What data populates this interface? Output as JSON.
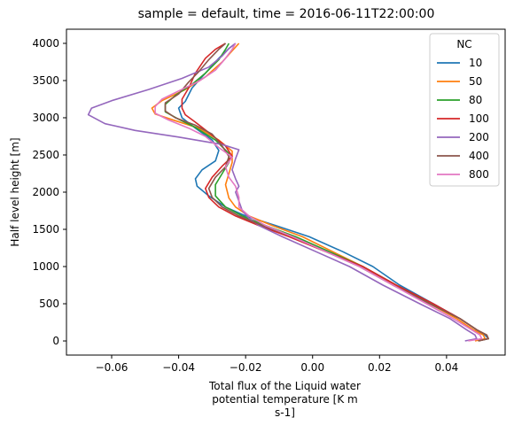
{
  "chart_data": {
    "type": "line",
    "title": "sample = default, time = 2016-06-11T22:00:00",
    "xlabel_lines": [
      "Total flux of the Liquid water",
      "potential temperature [K m",
      "s-1]"
    ],
    "ylabel": "Half level height [m]",
    "xlim": [
      -0.0735,
      0.0575
    ],
    "ylim": [
      -190,
      4190
    ],
    "xticks": [
      -0.06,
      -0.04,
      -0.02,
      0.0,
      0.02,
      0.04
    ],
    "xtick_labels": [
      "−0.06",
      "−0.04",
      "−0.02",
      "0.00",
      "0.02",
      "0.04"
    ],
    "yticks": [
      0,
      500,
      1000,
      1500,
      2000,
      2500,
      3000,
      3500,
      4000
    ],
    "ytick_labels": [
      "0",
      "500",
      "1000",
      "1500",
      "2000",
      "2500",
      "3000",
      "3500",
      "4000"
    ],
    "grid": false,
    "legend": {
      "title": "NC",
      "position": "top-right"
    },
    "series": [
      {
        "name": "10",
        "color": "#1f77b4",
        "points": [
          [
            0.0495,
            0
          ],
          [
            0.0525,
            30
          ],
          [
            0.0515,
            80
          ],
          [
            0.049,
            150
          ],
          [
            0.044,
            300
          ],
          [
            0.036,
            500
          ],
          [
            0.026,
            750
          ],
          [
            0.018,
            1000
          ],
          [
            0.009,
            1200
          ],
          [
            -0.001,
            1400
          ],
          [
            -0.011,
            1550
          ],
          [
            -0.02,
            1680
          ],
          [
            -0.026,
            1800
          ],
          [
            -0.031,
            1950
          ],
          [
            -0.0345,
            2080
          ],
          [
            -0.035,
            2180
          ],
          [
            -0.033,
            2300
          ],
          [
            -0.029,
            2420
          ],
          [
            -0.028,
            2560
          ],
          [
            -0.03,
            2700
          ],
          [
            -0.035,
            2860
          ],
          [
            -0.039,
            3000
          ],
          [
            -0.04,
            3130
          ],
          [
            -0.038,
            3220
          ],
          [
            -0.036,
            3400
          ],
          [
            -0.032,
            3600
          ],
          [
            -0.028,
            3800
          ],
          [
            -0.025,
            3930
          ],
          [
            -0.023,
            4000
          ]
        ]
      },
      {
        "name": "50",
        "color": "#ff7f0e",
        "points": [
          [
            0.0485,
            0
          ],
          [
            0.0515,
            30
          ],
          [
            0.051,
            80
          ],
          [
            0.048,
            150
          ],
          [
            0.043,
            300
          ],
          [
            0.035,
            500
          ],
          [
            0.024,
            750
          ],
          [
            0.015,
            1000
          ],
          [
            0.006,
            1200
          ],
          [
            -0.003,
            1400
          ],
          [
            -0.012,
            1550
          ],
          [
            -0.019,
            1680
          ],
          [
            -0.023,
            1800
          ],
          [
            -0.025,
            1920
          ],
          [
            -0.026,
            2100
          ],
          [
            -0.025,
            2250
          ],
          [
            -0.024,
            2400
          ],
          [
            -0.024,
            2550
          ],
          [
            -0.028,
            2700
          ],
          [
            -0.034,
            2860
          ],
          [
            -0.041,
            2960
          ],
          [
            -0.047,
            3050
          ],
          [
            -0.048,
            3130
          ],
          [
            -0.045,
            3230
          ],
          [
            -0.038,
            3380
          ],
          [
            -0.032,
            3550
          ],
          [
            -0.027,
            3750
          ],
          [
            -0.024,
            3900
          ],
          [
            -0.022,
            4000
          ]
        ]
      },
      {
        "name": "80",
        "color": "#2ca02c",
        "points": [
          [
            0.0495,
            0
          ],
          [
            0.0525,
            30
          ],
          [
            0.052,
            80
          ],
          [
            0.049,
            150
          ],
          [
            0.044,
            300
          ],
          [
            0.035,
            500
          ],
          [
            0.025,
            750
          ],
          [
            0.015,
            1000
          ],
          [
            0.005,
            1200
          ],
          [
            -0.005,
            1400
          ],
          [
            -0.014,
            1550
          ],
          [
            -0.021,
            1680
          ],
          [
            -0.026,
            1800
          ],
          [
            -0.029,
            1950
          ],
          [
            -0.029,
            2100
          ],
          [
            -0.027,
            2250
          ],
          [
            -0.025,
            2400
          ],
          [
            -0.025,
            2520
          ],
          [
            -0.029,
            2700
          ],
          [
            -0.035,
            2870
          ],
          [
            -0.04,
            2980
          ],
          [
            -0.044,
            3080
          ],
          [
            -0.044,
            3180
          ],
          [
            -0.041,
            3300
          ],
          [
            -0.036,
            3450
          ],
          [
            -0.032,
            3600
          ],
          [
            -0.028,
            3780
          ],
          [
            -0.026,
            3920
          ],
          [
            -0.025,
            4000
          ]
        ]
      },
      {
        "name": "100",
        "color": "#d62728",
        "points": [
          [
            0.0495,
            0
          ],
          [
            0.0525,
            30
          ],
          [
            0.052,
            80
          ],
          [
            0.049,
            150
          ],
          [
            0.044,
            300
          ],
          [
            0.036,
            500
          ],
          [
            0.025,
            750
          ],
          [
            0.015,
            1000
          ],
          [
            0.004,
            1200
          ],
          [
            -0.007,
            1400
          ],
          [
            -0.016,
            1550
          ],
          [
            -0.023,
            1680
          ],
          [
            -0.028,
            1800
          ],
          [
            -0.031,
            1930
          ],
          [
            -0.032,
            2050
          ],
          [
            -0.03,
            2200
          ],
          [
            -0.027,
            2350
          ],
          [
            -0.024,
            2480
          ],
          [
            -0.026,
            2620
          ],
          [
            -0.031,
            2800
          ],
          [
            -0.035,
            2940
          ],
          [
            -0.038,
            3040
          ],
          [
            -0.039,
            3130
          ],
          [
            -0.039,
            3250
          ],
          [
            -0.037,
            3400
          ],
          [
            -0.035,
            3600
          ],
          [
            -0.032,
            3800
          ],
          [
            -0.029,
            3920
          ],
          [
            -0.026,
            4000
          ]
        ]
      },
      {
        "name": "200",
        "color": "#9467bd",
        "points": [
          [
            0.0455,
            0
          ],
          [
            0.049,
            30
          ],
          [
            0.0485,
            80
          ],
          [
            0.046,
            150
          ],
          [
            0.041,
            300
          ],
          [
            0.032,
            500
          ],
          [
            0.021,
            750
          ],
          [
            0.011,
            1000
          ],
          [
            0.001,
            1200
          ],
          [
            -0.009,
            1400
          ],
          [
            -0.016,
            1550
          ],
          [
            -0.019,
            1650
          ],
          [
            -0.021,
            1750
          ],
          [
            -0.022,
            1880
          ],
          [
            -0.023,
            2000
          ],
          [
            -0.022,
            2080
          ],
          [
            -0.023,
            2180
          ],
          [
            -0.024,
            2300
          ],
          [
            -0.023,
            2450
          ],
          [
            -0.022,
            2570
          ],
          [
            -0.027,
            2640
          ],
          [
            -0.04,
            2740
          ],
          [
            -0.053,
            2830
          ],
          [
            -0.062,
            2920
          ],
          [
            -0.067,
            3040
          ],
          [
            -0.066,
            3130
          ],
          [
            -0.06,
            3230
          ],
          [
            -0.049,
            3380
          ],
          [
            -0.039,
            3530
          ],
          [
            -0.031,
            3680
          ],
          [
            -0.027,
            3830
          ],
          [
            -0.025,
            3930
          ],
          [
            -0.023,
            4000
          ]
        ]
      },
      {
        "name": "400",
        "color": "#8c564b",
        "points": [
          [
            0.0495,
            0
          ],
          [
            0.0525,
            30
          ],
          [
            0.052,
            80
          ],
          [
            0.049,
            150
          ],
          [
            0.044,
            300
          ],
          [
            0.035,
            500
          ],
          [
            0.024,
            750
          ],
          [
            0.014,
            1000
          ],
          [
            0.004,
            1200
          ],
          [
            -0.006,
            1400
          ],
          [
            -0.015,
            1550
          ],
          [
            -0.022,
            1680
          ],
          [
            -0.027,
            1800
          ],
          [
            -0.03,
            1930
          ],
          [
            -0.031,
            2050
          ],
          [
            -0.029,
            2200
          ],
          [
            -0.026,
            2340
          ],
          [
            -0.025,
            2480
          ],
          [
            -0.027,
            2620
          ],
          [
            -0.03,
            2780
          ],
          [
            -0.035,
            2900
          ],
          [
            -0.041,
            3000
          ],
          [
            -0.044,
            3090
          ],
          [
            -0.044,
            3200
          ],
          [
            -0.04,
            3320
          ],
          [
            -0.037,
            3480
          ],
          [
            -0.034,
            3620
          ],
          [
            -0.031,
            3780
          ],
          [
            -0.028,
            3920
          ],
          [
            -0.026,
            4000
          ]
        ]
      },
      {
        "name": "800",
        "color": "#e377c2",
        "points": [
          [
            0.0465,
            0
          ],
          [
            0.0505,
            30
          ],
          [
            0.05,
            80
          ],
          [
            0.0475,
            150
          ],
          [
            0.042,
            300
          ],
          [
            0.034,
            500
          ],
          [
            0.024,
            750
          ],
          [
            0.014,
            1000
          ],
          [
            0.004,
            1200
          ],
          [
            -0.006,
            1400
          ],
          [
            -0.014,
            1550
          ],
          [
            -0.019,
            1680
          ],
          [
            -0.022,
            1800
          ],
          [
            -0.022,
            1930
          ],
          [
            -0.023,
            2080
          ],
          [
            -0.025,
            2200
          ],
          [
            -0.026,
            2340
          ],
          [
            -0.024,
            2470
          ],
          [
            -0.028,
            2600
          ],
          [
            -0.032,
            2750
          ],
          [
            -0.037,
            2860
          ],
          [
            -0.043,
            2970
          ],
          [
            -0.047,
            3060
          ],
          [
            -0.047,
            3150
          ],
          [
            -0.045,
            3250
          ],
          [
            -0.04,
            3360
          ],
          [
            -0.034,
            3490
          ],
          [
            -0.029,
            3640
          ],
          [
            -0.026,
            3800
          ],
          [
            -0.024,
            3920
          ],
          [
            -0.023,
            4000
          ]
        ]
      }
    ]
  }
}
